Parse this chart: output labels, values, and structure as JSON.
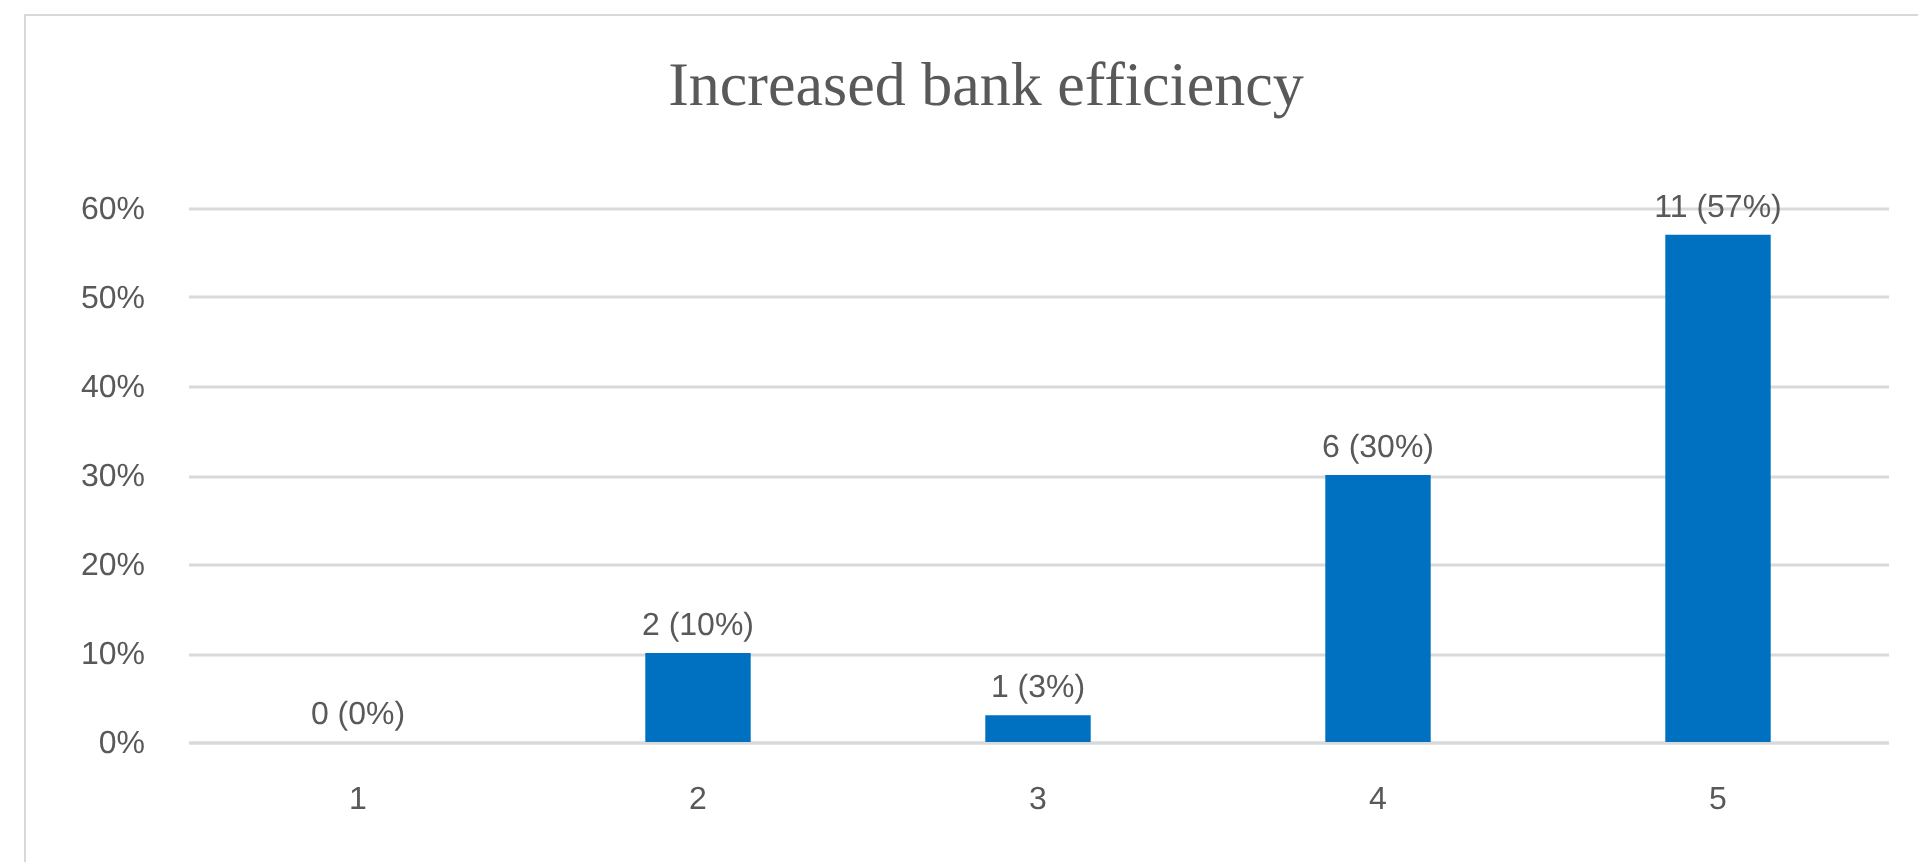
{
  "chart_data": {
    "type": "bar",
    "title": "Increased bank efficiency",
    "categories": [
      "1",
      "2",
      "3",
      "4",
      "5"
    ],
    "values": [
      0,
      10,
      3,
      30,
      57
    ],
    "value_labels": [
      "0 (0%)",
      "2 (10%)",
      "1 (3%)",
      "6 (30%)",
      "11 (57%)"
    ],
    "color": "#0070c0",
    "ylim": [
      0,
      60
    ],
    "yticks": [
      {
        "value": 0,
        "label": "0%"
      },
      {
        "value": 10,
        "label": "10%"
      },
      {
        "value": 20,
        "label": "20%"
      },
      {
        "value": 30,
        "label": "30%"
      },
      {
        "value": 40,
        "label": "40%"
      },
      {
        "value": 50,
        "label": "50%"
      },
      {
        "value": 60,
        "label": "60%"
      }
    ],
    "grid": "y"
  }
}
